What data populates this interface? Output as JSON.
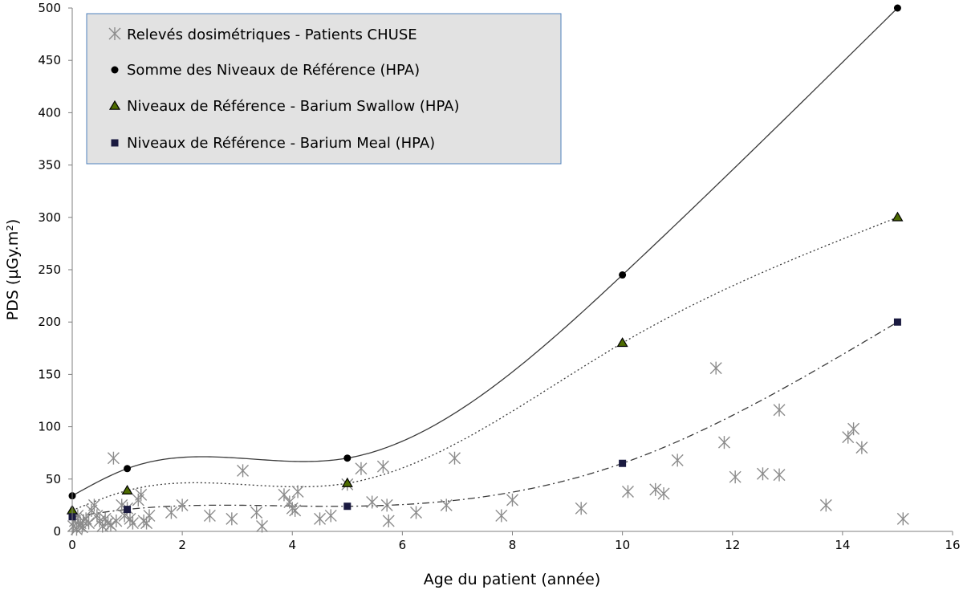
{
  "chart_data": {
    "type": "scatter",
    "title": "",
    "xlabel": "Age du patient (année)",
    "ylabel": "PDS (µGy.m²)",
    "xlim": [
      0,
      16
    ],
    "ylim": [
      0,
      500
    ],
    "x_ticks": [
      "0",
      "2",
      "4",
      "6",
      "8",
      "10",
      "12",
      "14",
      "16"
    ],
    "y_ticks": [
      "0",
      "50",
      "100",
      "150",
      "200",
      "250",
      "300",
      "350",
      "400",
      "450",
      "500"
    ],
    "grid": false,
    "legend_position": "top-left",
    "series": [
      {
        "name": "Relevés dosimétriques - Patients CHUSE",
        "marker": "star",
        "color": "#8c8c8c",
        "points": [
          [
            0.02,
            5
          ],
          [
            0.05,
            10
          ],
          [
            0.08,
            2
          ],
          [
            0.1,
            15
          ],
          [
            0.12,
            6
          ],
          [
            0.15,
            8
          ],
          [
            0.18,
            4
          ],
          [
            0.2,
            10
          ],
          [
            0.25,
            12
          ],
          [
            0.3,
            8
          ],
          [
            0.35,
            20
          ],
          [
            0.4,
            25
          ],
          [
            0.45,
            15
          ],
          [
            0.5,
            10
          ],
          [
            0.55,
            5
          ],
          [
            0.6,
            12
          ],
          [
            0.65,
            8
          ],
          [
            0.7,
            6
          ],
          [
            0.75,
            70
          ],
          [
            0.8,
            10
          ],
          [
            0.9,
            25
          ],
          [
            0.95,
            15
          ],
          [
            1.0,
            22
          ],
          [
            1.05,
            12
          ],
          [
            1.1,
            8
          ],
          [
            1.2,
            30
          ],
          [
            1.25,
            35
          ],
          [
            1.3,
            10
          ],
          [
            1.35,
            8
          ],
          [
            1.4,
            15
          ],
          [
            1.8,
            18
          ],
          [
            2.0,
            25
          ],
          [
            2.5,
            15
          ],
          [
            2.9,
            12
          ],
          [
            3.1,
            58
          ],
          [
            3.35,
            18
          ],
          [
            3.45,
            5
          ],
          [
            3.85,
            35
          ],
          [
            3.95,
            28
          ],
          [
            4.0,
            22
          ],
          [
            4.05,
            20
          ],
          [
            4.1,
            38
          ],
          [
            4.5,
            12
          ],
          [
            4.7,
            15
          ],
          [
            5.0,
            45
          ],
          [
            5.25,
            60
          ],
          [
            5.45,
            28
          ],
          [
            5.65,
            62
          ],
          [
            5.72,
            25
          ],
          [
            5.75,
            10
          ],
          [
            6.25,
            18
          ],
          [
            6.8,
            25
          ],
          [
            6.95,
            70
          ],
          [
            7.8,
            15
          ],
          [
            8.0,
            30
          ],
          [
            9.25,
            22
          ],
          [
            10.1,
            38
          ],
          [
            10.6,
            40
          ],
          [
            10.75,
            36
          ],
          [
            11.0,
            68
          ],
          [
            11.7,
            156
          ],
          [
            11.85,
            85
          ],
          [
            12.05,
            52
          ],
          [
            12.55,
            55
          ],
          [
            12.85,
            116
          ],
          [
            12.85,
            54
          ],
          [
            13.7,
            25
          ],
          [
            14.1,
            90
          ],
          [
            14.2,
            98
          ],
          [
            14.35,
            80
          ],
          [
            15.1,
            12
          ]
        ]
      },
      {
        "name": "Somme des Niveaux de Référence (HPA)",
        "marker": "circle",
        "color": "#000000",
        "trendline": "solid",
        "points": [
          [
            0,
            34
          ],
          [
            1,
            60
          ],
          [
            5,
            70
          ],
          [
            10,
            245
          ],
          [
            15,
            500
          ]
        ]
      },
      {
        "name": "Niveaux de Référence - Barium Swallow (HPA)",
        "marker": "triangle",
        "color": "#000000",
        "fill": "#4d6b00",
        "trendline": "dotted",
        "points": [
          [
            0,
            20
          ],
          [
            1,
            39
          ],
          [
            5,
            46
          ],
          [
            10,
            180
          ],
          [
            15,
            300
          ]
        ]
      },
      {
        "name": "Niveaux de Référence - Barium Meal (HPA)",
        "marker": "square",
        "color": "#1a1a40",
        "trendline": "dashdot",
        "points": [
          [
            0,
            14
          ],
          [
            1,
            21
          ],
          [
            5,
            24
          ],
          [
            10,
            65
          ],
          [
            15,
            200
          ]
        ]
      }
    ]
  }
}
